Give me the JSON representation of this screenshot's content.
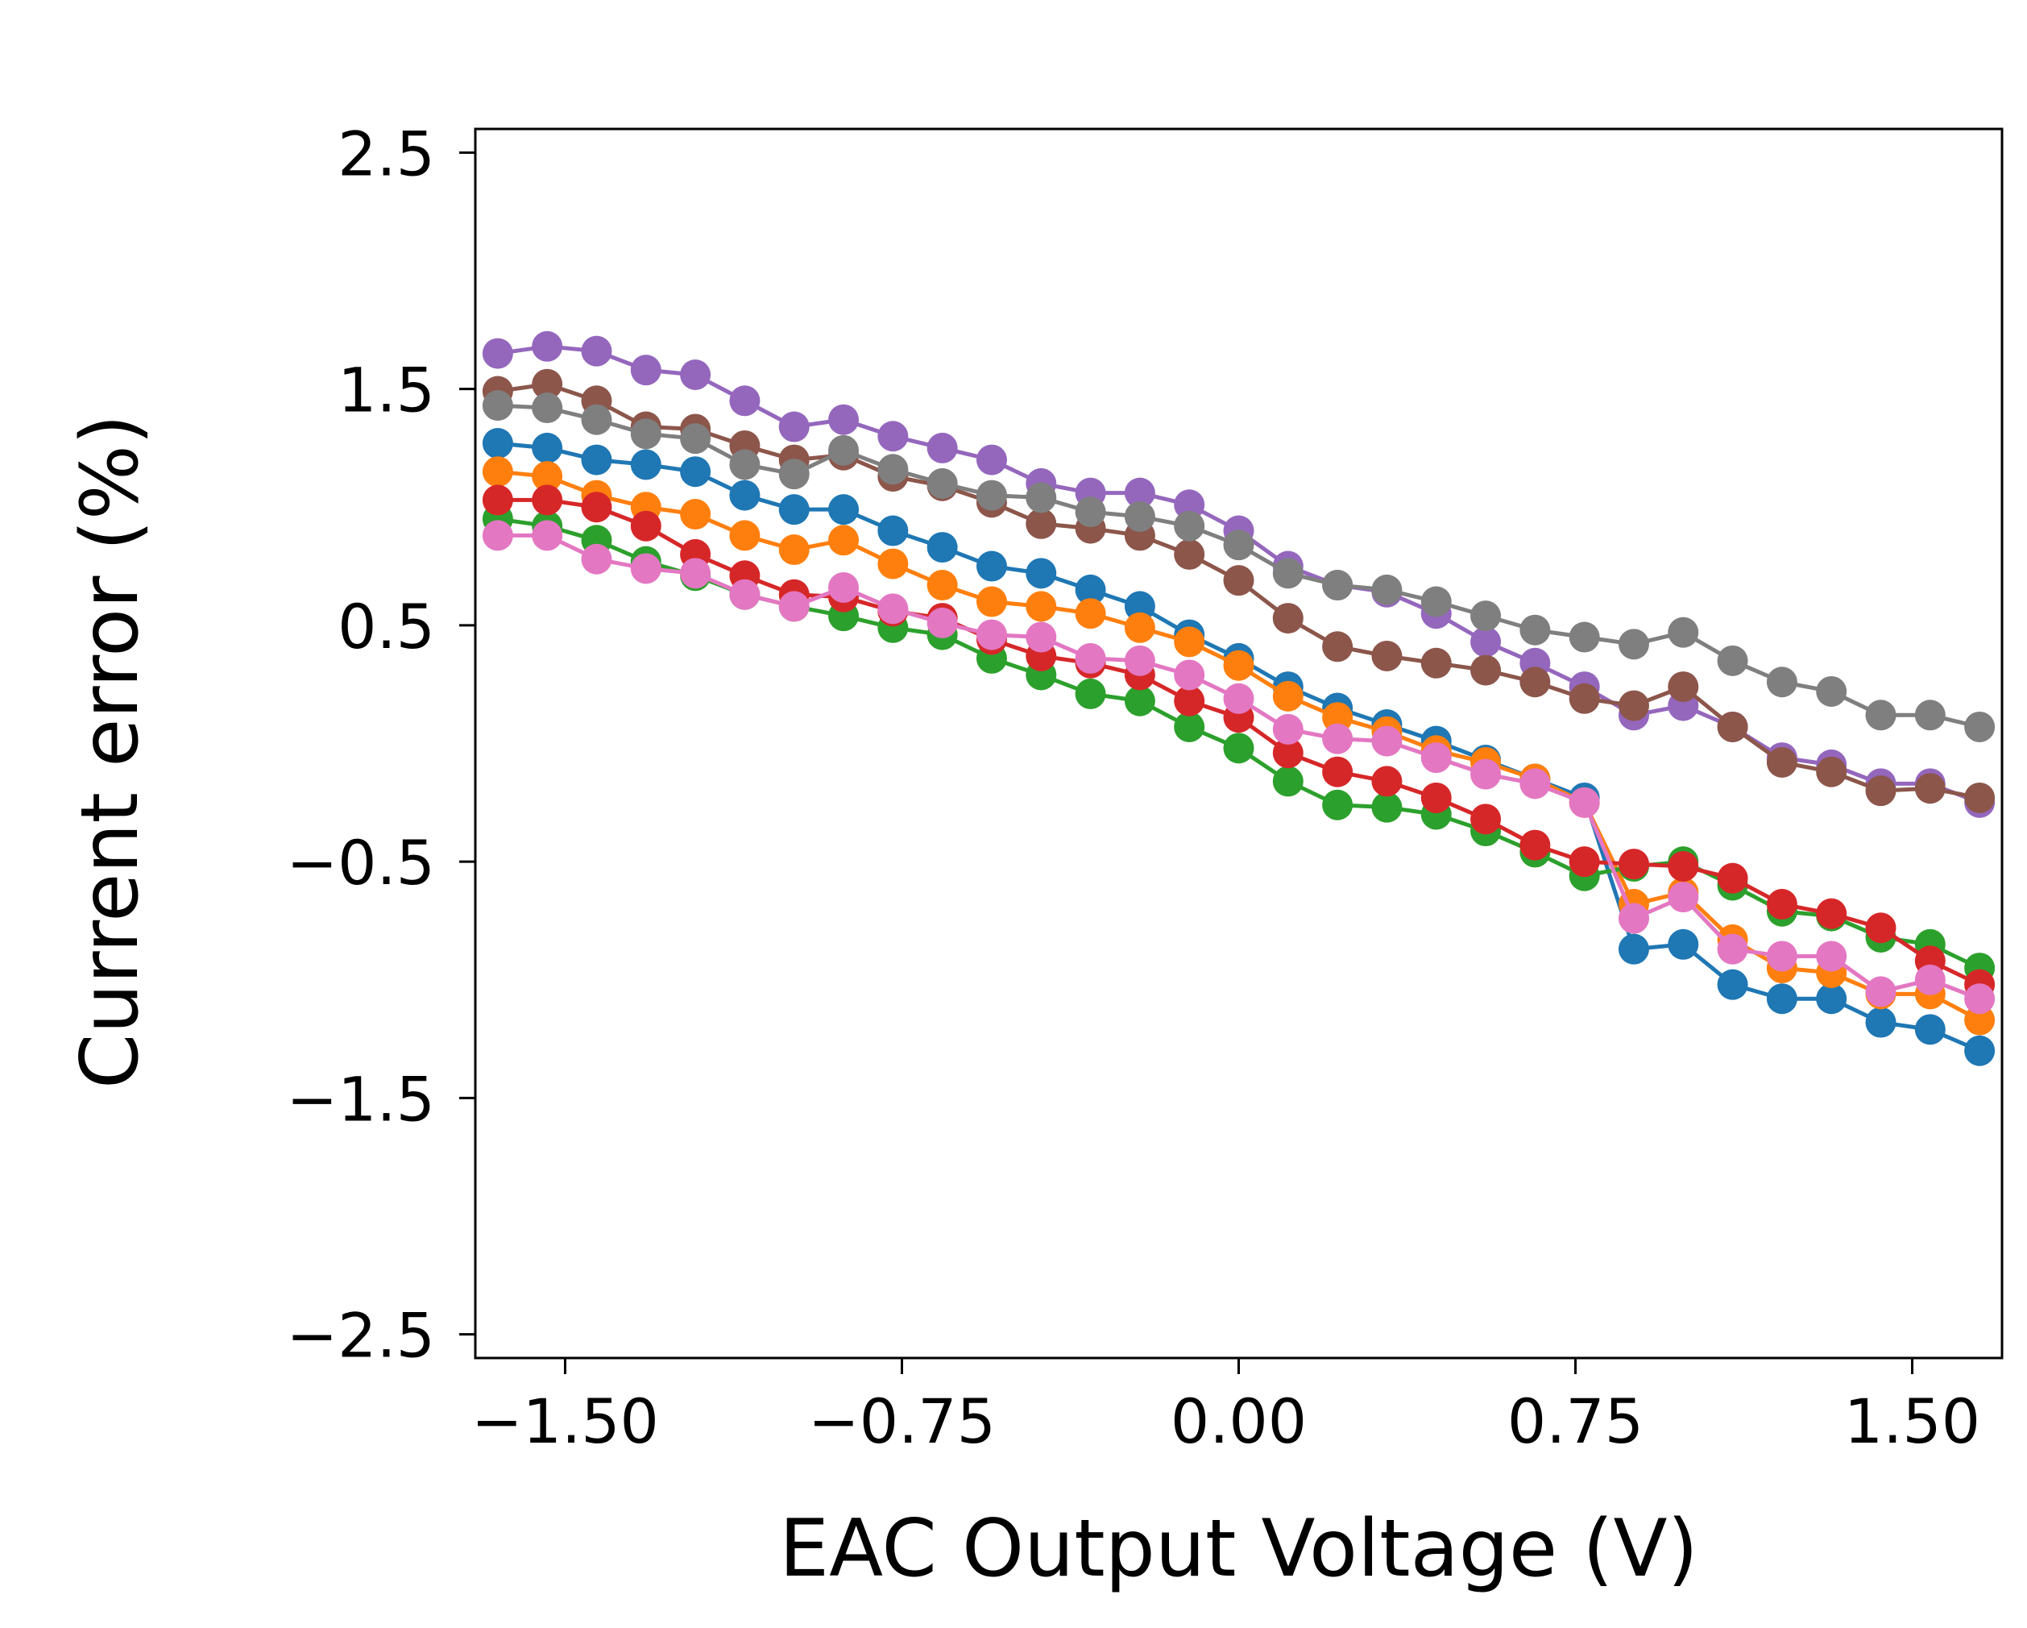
{
  "chart_data": {
    "type": "line",
    "title": "",
    "xlabel": "EAC Output Voltage (V)",
    "ylabel": "Current error (%)",
    "xlim": [
      -1.7,
      1.7
    ],
    "ylim": [
      -2.6,
      2.6
    ],
    "xticks": [
      -1.5,
      -0.75,
      0.0,
      0.75,
      1.5
    ],
    "xtick_labels": [
      "−1.50",
      "−0.75",
      "0.00",
      "0.75",
      "1.50"
    ],
    "yticks": [
      2.5,
      1.5,
      0.5,
      -0.5,
      -1.5,
      -2.5
    ],
    "ytick_labels": [
      "2.5",
      "1.5",
      "0.5",
      "−0.5",
      "−1.5",
      "−2.5"
    ],
    "grid": false,
    "x": [
      -1.65,
      -1.54,
      -1.43,
      -1.32,
      -1.21,
      -1.1,
      -0.99,
      -0.88,
      -0.77,
      -0.66,
      -0.55,
      -0.44,
      -0.33,
      -0.22,
      -0.11,
      0.0,
      0.11,
      0.22,
      0.33,
      0.44,
      0.55,
      0.66,
      0.77,
      0.88,
      0.99,
      1.1,
      1.21,
      1.32,
      1.43,
      1.54,
      1.65
    ],
    "series": [
      {
        "name": "series-blue",
        "color": "#1f77b4",
        "values": [
          1.27,
          1.25,
          1.2,
          1.18,
          1.15,
          1.05,
          0.99,
          0.99,
          0.9,
          0.83,
          0.75,
          0.72,
          0.65,
          0.58,
          0.46,
          0.36,
          0.24,
          0.15,
          0.08,
          0.01,
          -0.07,
          -0.15,
          -0.23,
          -0.87,
          -0.85,
          -1.02,
          -1.08,
          -1.08,
          -1.18,
          -1.21,
          -1.3
        ]
      },
      {
        "name": "series-orange",
        "color": "#ff7f0e",
        "values": [
          1.15,
          1.13,
          1.05,
          1.0,
          0.97,
          0.88,
          0.82,
          0.86,
          0.76,
          0.67,
          0.6,
          0.58,
          0.55,
          0.49,
          0.43,
          0.33,
          0.2,
          0.11,
          0.05,
          -0.03,
          -0.08,
          -0.15,
          -0.25,
          -0.68,
          -0.63,
          -0.83,
          -0.95,
          -0.97,
          -1.06,
          -1.06,
          -1.17
        ]
      },
      {
        "name": "series-green",
        "color": "#2ca02c",
        "values": [
          0.95,
          0.92,
          0.86,
          0.77,
          0.71,
          0.63,
          0.58,
          0.54,
          0.49,
          0.46,
          0.36,
          0.29,
          0.21,
          0.18,
          0.07,
          -0.02,
          -0.16,
          -0.26,
          -0.27,
          -0.3,
          -0.37,
          -0.46,
          -0.56,
          -0.52,
          -0.5,
          -0.6,
          -0.71,
          -0.73,
          -0.82,
          -0.85,
          -0.95
        ]
      },
      {
        "name": "series-red",
        "color": "#d62728",
        "values": [
          1.03,
          1.03,
          1.0,
          0.92,
          0.8,
          0.71,
          0.63,
          0.62,
          0.56,
          0.53,
          0.44,
          0.37,
          0.34,
          0.29,
          0.18,
          0.11,
          -0.04,
          -0.12,
          -0.16,
          -0.23,
          -0.32,
          -0.43,
          -0.5,
          -0.51,
          -0.52,
          -0.57,
          -0.68,
          -0.72,
          -0.78,
          -0.92,
          -1.02
        ]
      },
      {
        "name": "series-purple",
        "color": "#9467bd",
        "values": [
          1.65,
          1.68,
          1.66,
          1.58,
          1.56,
          1.45,
          1.34,
          1.37,
          1.3,
          1.25,
          1.2,
          1.1,
          1.06,
          1.06,
          1.01,
          0.9,
          0.75,
          0.67,
          0.64,
          0.55,
          0.43,
          0.34,
          0.24,
          0.12,
          0.16,
          0.07,
          -0.06,
          -0.09,
          -0.17,
          -0.17,
          -0.25
        ]
      },
      {
        "name": "series-brown",
        "color": "#8c564b",
        "values": [
          1.49,
          1.52,
          1.45,
          1.34,
          1.33,
          1.26,
          1.2,
          1.22,
          1.13,
          1.09,
          1.02,
          0.93,
          0.91,
          0.88,
          0.8,
          0.69,
          0.53,
          0.41,
          0.37,
          0.34,
          0.31,
          0.26,
          0.19,
          0.16,
          0.24,
          0.07,
          -0.08,
          -0.12,
          -0.2,
          -0.19,
          -0.23
        ]
      },
      {
        "name": "series-pink",
        "color": "#e377c2",
        "values": [
          0.88,
          0.88,
          0.78,
          0.74,
          0.72,
          0.63,
          0.58,
          0.66,
          0.57,
          0.51,
          0.46,
          0.45,
          0.36,
          0.35,
          0.29,
          0.19,
          0.06,
          0.02,
          0.01,
          -0.06,
          -0.13,
          -0.17,
          -0.25,
          -0.74,
          -0.65,
          -0.87,
          -0.9,
          -0.9,
          -1.05,
          -1.0,
          -1.08
        ]
      },
      {
        "name": "series-gray",
        "color": "#7f7f7f",
        "values": [
          1.43,
          1.42,
          1.37,
          1.31,
          1.29,
          1.18,
          1.14,
          1.24,
          1.16,
          1.1,
          1.05,
          1.04,
          0.98,
          0.96,
          0.92,
          0.84,
          0.72,
          0.67,
          0.65,
          0.6,
          0.54,
          0.48,
          0.45,
          0.42,
          0.47,
          0.35,
          0.26,
          0.22,
          0.12,
          0.12,
          0.07
        ]
      }
    ]
  }
}
